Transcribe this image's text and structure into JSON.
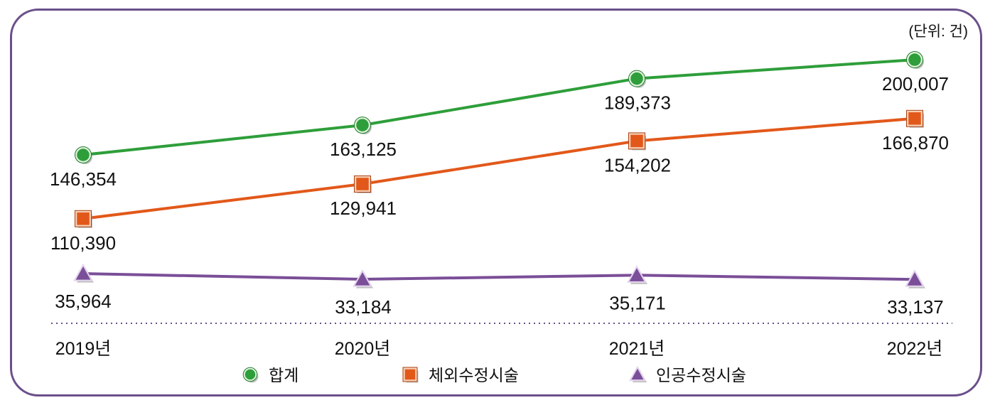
{
  "chart_data": {
    "type": "line",
    "unit_label": "(단위: 건)",
    "categories": [
      "2019년",
      "2020년",
      "2021년",
      "2022년"
    ],
    "series": [
      {
        "name": "합계",
        "values": [
          146354,
          163125,
          189373,
          200007
        ],
        "color": "#2e9e3a",
        "marker": "circle"
      },
      {
        "name": "체외수정시술",
        "values": [
          110390,
          129941,
          154202,
          166870
        ],
        "color": "#e2581a",
        "marker": "square"
      },
      {
        "name": "인공수정시술",
        "values": [
          35964,
          33184,
          35171,
          33137
        ],
        "color": "#7a4e98",
        "marker": "triangle"
      }
    ],
    "value_labels": [
      [
        "146,354",
        "163,125",
        "189,373",
        "200,007"
      ],
      [
        "110,390",
        "129,941",
        "154,202",
        "166,870"
      ],
      [
        "35,964",
        "33,184",
        "35,171",
        "33,137"
      ]
    ],
    "legend_position": "bottom",
    "grid": false,
    "axis_break": true
  }
}
